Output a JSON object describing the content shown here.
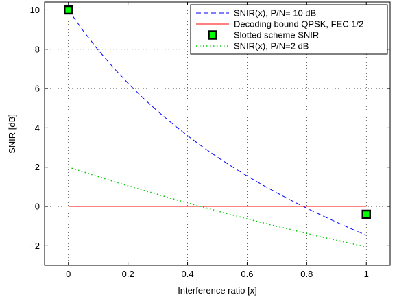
{
  "chart_data": {
    "type": "line",
    "title": "",
    "xlabel": "Interference ratio [x]",
    "ylabel": "SNIR [dB]",
    "xlim": [
      -0.08,
      1.08
    ],
    "ylim": [
      -3,
      10.4
    ],
    "xticks": [
      0,
      0.2,
      0.4,
      0.6,
      0.8,
      1
    ],
    "xtick_labels": [
      "0",
      "0.2",
      "0.4",
      "0.6",
      "0.8",
      "1"
    ],
    "yticks": [
      -2,
      0,
      2,
      4,
      6,
      8,
      10
    ],
    "ytick_labels": [
      "−2",
      "0",
      "2",
      "4",
      "6",
      "8",
      "10"
    ],
    "grid": true,
    "legend_position": "top-right",
    "series": [
      {
        "name": "SNIR(x), P/N= 10 dB",
        "style": "dashed",
        "color": "#0000ff",
        "x": [
          0,
          0.05,
          0.1,
          0.15,
          0.2,
          0.25,
          0.3,
          0.35,
          0.4,
          0.45,
          0.5,
          0.55,
          0.6,
          0.65,
          0.7,
          0.75,
          0.8,
          0.85,
          0.9,
          0.95,
          1
        ],
        "y": [
          10,
          8.93,
          7.96,
          7.08,
          6.27,
          5.53,
          4.84,
          4.2,
          3.6,
          3.04,
          2.51,
          2.02,
          1.55,
          1.11,
          0.69,
          0.29,
          -0.09,
          -0.45,
          -0.8,
          -1.14,
          -1.46
        ]
      },
      {
        "name": "Decoding bound QPSK, FEC 1/2",
        "style": "solid",
        "color": "#ff0000",
        "x": [
          0,
          1
        ],
        "y": [
          0,
          0
        ]
      },
      {
        "name": "Slotted scheme SNIR",
        "style": "markers",
        "color": "#00ff00",
        "edge_color": "#000000",
        "x": [
          0,
          1
        ],
        "y": [
          10,
          -0.4
        ]
      },
      {
        "name": "SNIR(x), P/N=2 dB",
        "style": "dotted",
        "color": "#00cc00",
        "x": [
          0,
          0.05,
          0.1,
          0.15,
          0.2,
          0.25,
          0.3,
          0.35,
          0.4,
          0.45,
          0.5,
          0.55,
          0.6,
          0.65,
          0.7,
          0.75,
          0.8,
          0.85,
          0.9,
          0.95,
          1
        ],
        "y": [
          2,
          1.76,
          1.52,
          1.28,
          1.05,
          0.83,
          0.61,
          0.39,
          0.18,
          -0.03,
          -0.23,
          -0.43,
          -0.63,
          -0.82,
          -1.01,
          -1.19,
          -1.37,
          -1.55,
          -1.72,
          -1.89,
          -2.06
        ]
      }
    ]
  }
}
